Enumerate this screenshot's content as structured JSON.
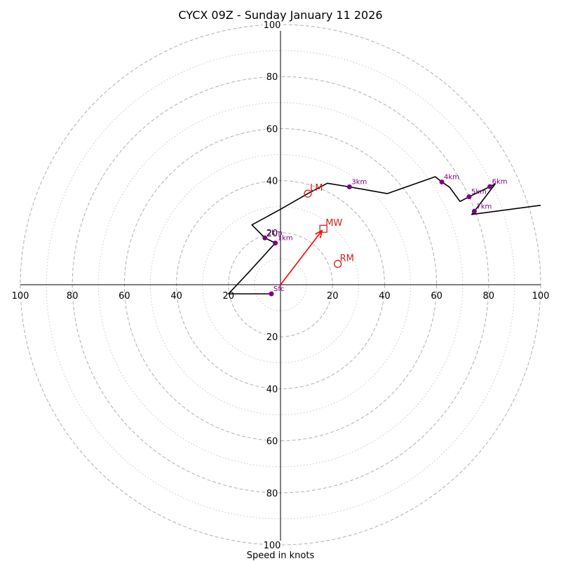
{
  "chart_data": {
    "type": "hodograph",
    "title": "CYCX 09Z - Sunday January 11 2026",
    "xlabel": "Speed in knots",
    "range": [
      -100,
      100
    ],
    "rings_major": [
      20,
      40,
      60,
      80,
      100
    ],
    "rings_minor": [
      10,
      30,
      50,
      70,
      90
    ],
    "x_ticks": [
      "100",
      "80",
      "60",
      "40",
      "20",
      "20",
      "40",
      "60",
      "80",
      "100"
    ],
    "y_ticks": [
      "100",
      "80",
      "60",
      "40",
      "20",
      "20",
      "40",
      "60",
      "80",
      "100"
    ],
    "trace": [
      [
        -3.5,
        -3.5
      ],
      [
        -20,
        -3.5
      ],
      [
        -12,
        5
      ],
      [
        -2,
        16
      ],
      [
        -6,
        18
      ],
      [
        -11,
        23
      ],
      [
        0,
        29
      ],
      [
        10.5,
        35
      ],
      [
        18,
        39
      ],
      [
        26.5,
        37.6
      ],
      [
        41,
        35
      ],
      [
        59.5,
        41.5
      ],
      [
        62,
        39.5
      ],
      [
        65,
        37.5
      ],
      [
        69,
        32
      ],
      [
        72.5,
        33.8
      ],
      [
        80.5,
        37.7
      ],
      [
        82.5,
        38.7
      ],
      [
        74.5,
        28.2
      ],
      [
        73.5,
        27
      ],
      [
        100,
        30.5
      ]
    ],
    "height_markers": [
      {
        "label": "Sfc",
        "u": -3.5,
        "v": -3.5
      },
      {
        "label": "1km",
        "u": -2,
        "v": 16
      },
      {
        "label": "2km",
        "u": -6,
        "v": 18
      },
      {
        "label": "3km",
        "u": 26.5,
        "v": 37.6
      },
      {
        "label": "4km",
        "u": 62,
        "v": 39.5
      },
      {
        "label": "5km",
        "u": 72.5,
        "v": 33.8
      },
      {
        "label": "6km",
        "u": 80.5,
        "v": 37.7
      },
      {
        "label": "7km",
        "u": 74.5,
        "v": 28.2
      }
    ],
    "storm_motion": {
      "LM": {
        "label": "LM",
        "u": 10.5,
        "v": 35
      },
      "MW": {
        "label": "MW",
        "u": 16.5,
        "v": 21.5
      },
      "RM": {
        "label": "RM",
        "u": 22,
        "v": 8
      }
    },
    "colors": {
      "trace": "#000000",
      "marker": "#800080",
      "motion": "#cc2222",
      "mw_vector": "#ff0000",
      "grid": "#b0b0b0"
    }
  }
}
